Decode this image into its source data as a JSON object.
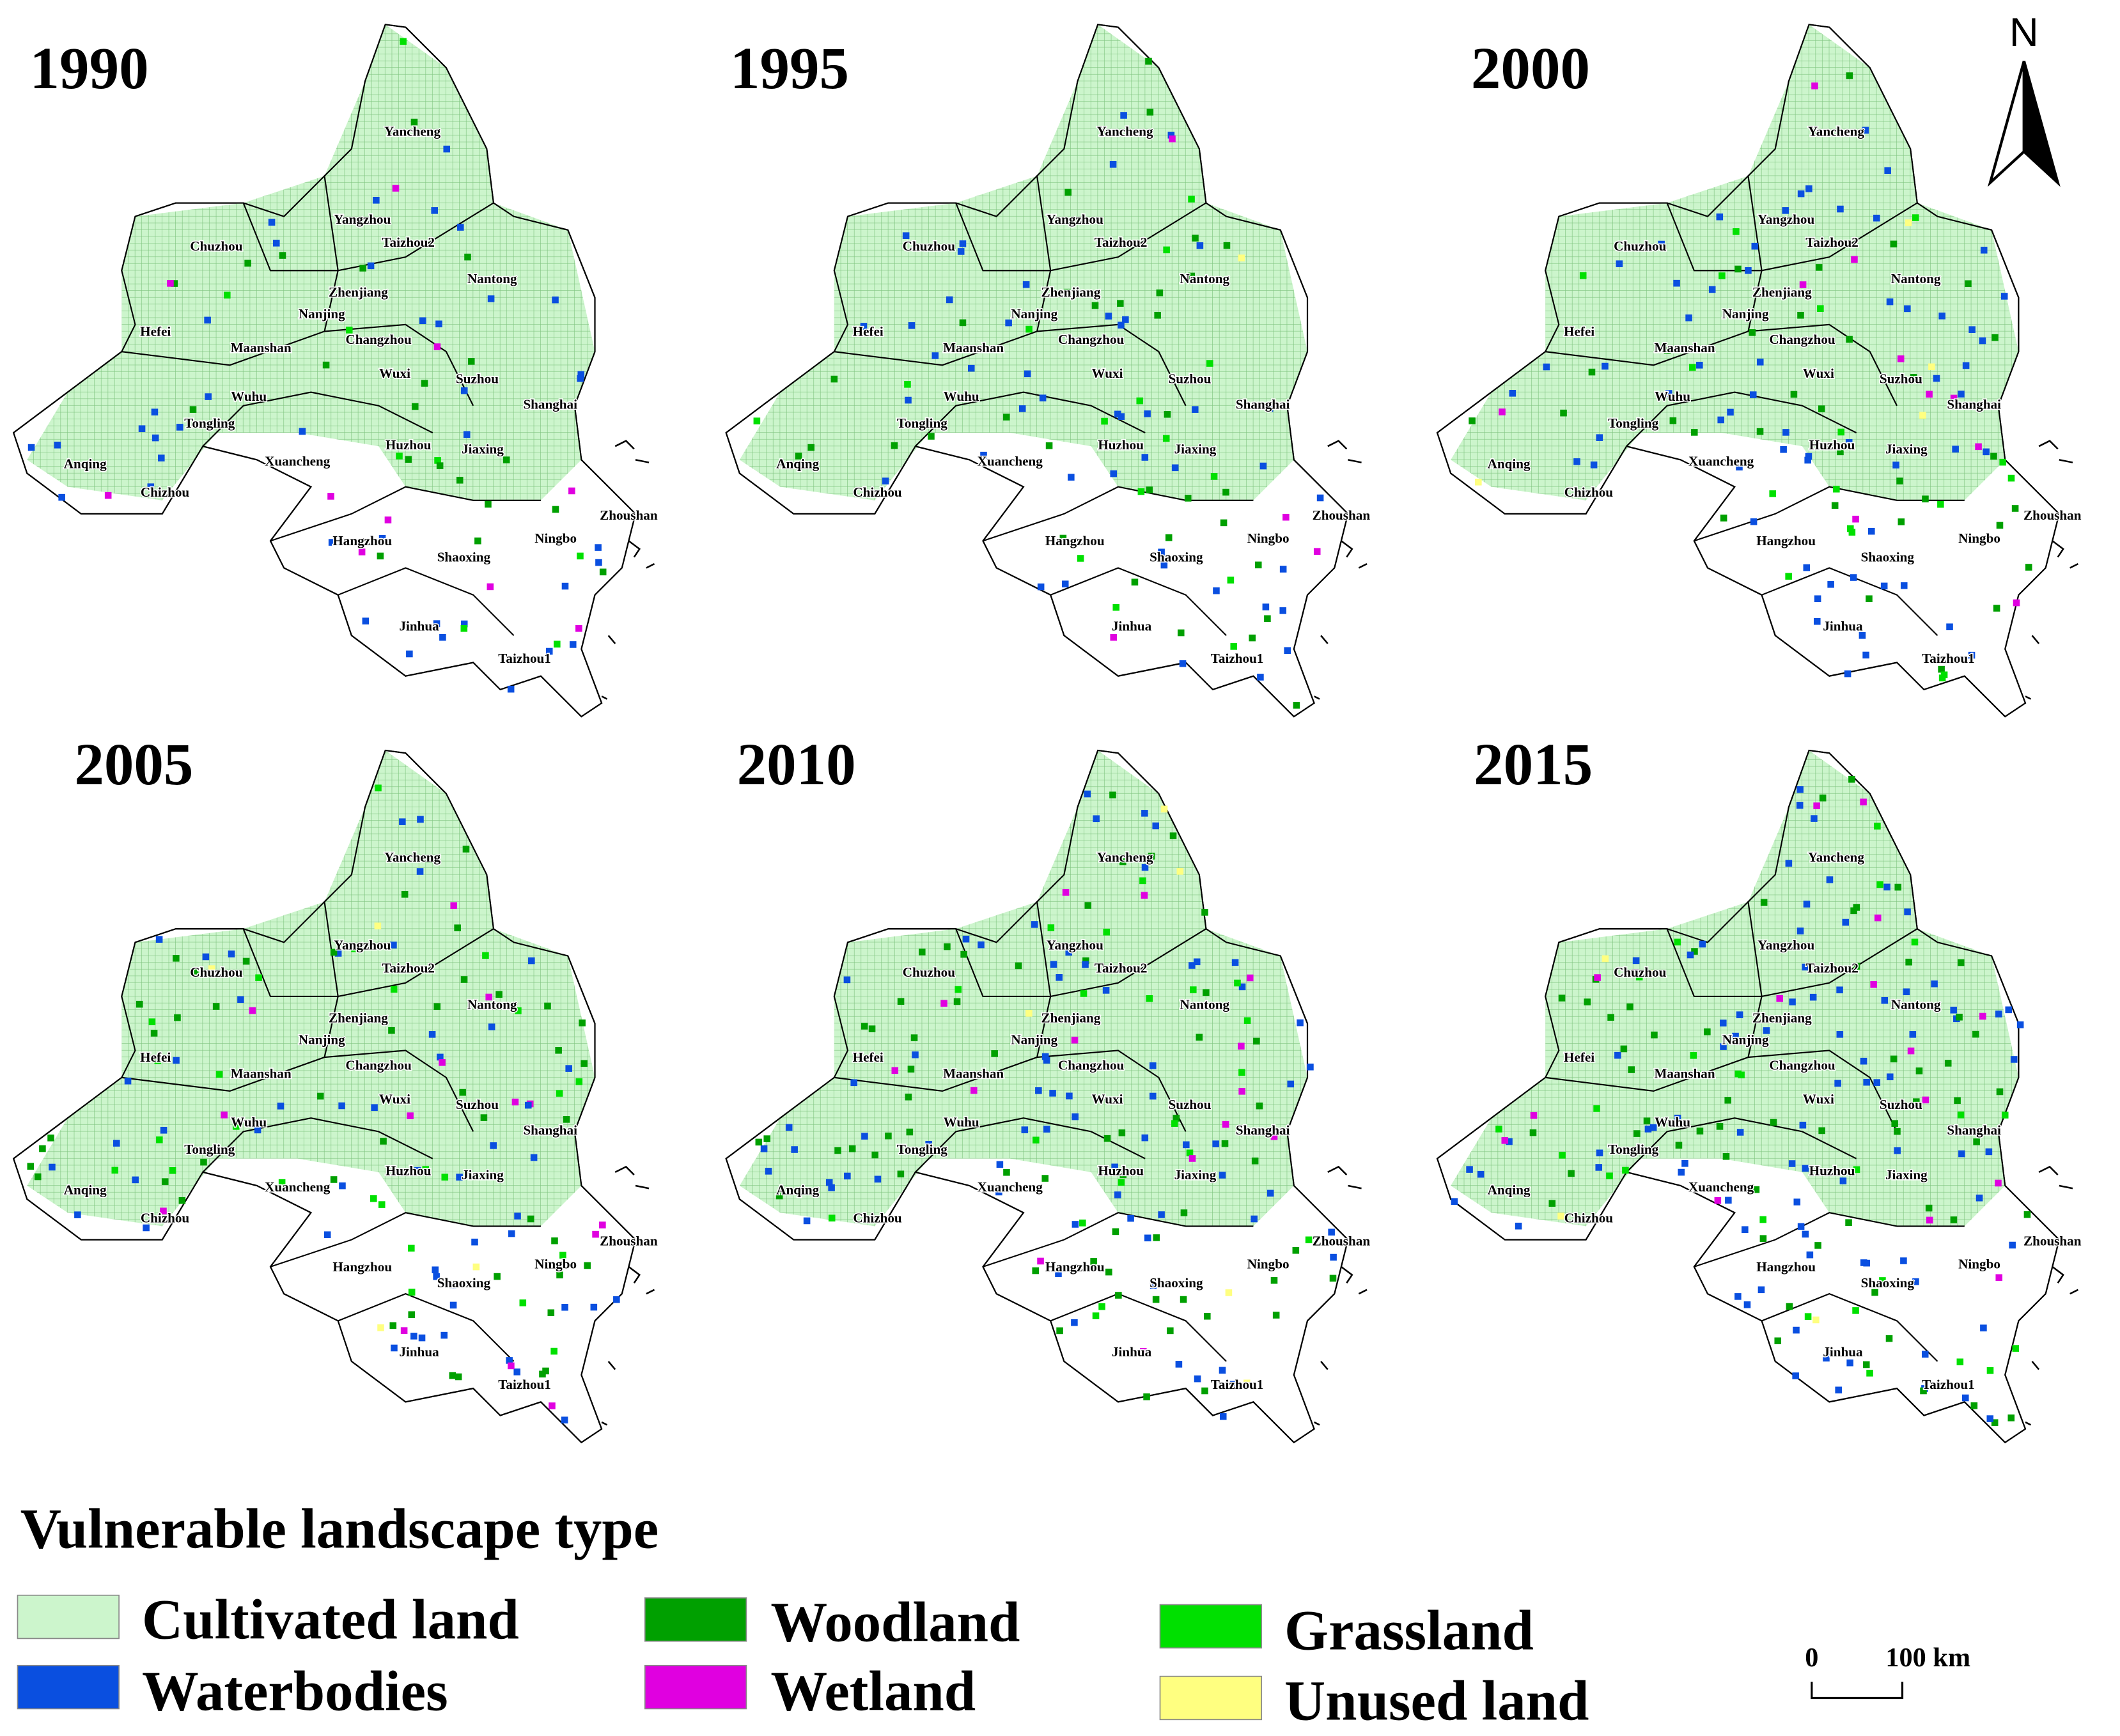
{
  "panels": [
    {
      "year": "1990"
    },
    {
      "year": "1995"
    },
    {
      "year": "2000"
    },
    {
      "year": "2005"
    },
    {
      "year": "2010"
    },
    {
      "year": "2015"
    }
  ],
  "cities": [
    "Yancheng",
    "Yangzhou",
    "Taizhou2",
    "Chuzhou",
    "Nantong",
    "Zhenjiang",
    "Nanjing",
    "Hefei",
    "Changzhou",
    "Maanshan",
    "Wuxi",
    "Suzhou",
    "Wuhu",
    "Shanghai",
    "Tongling",
    "Huzhou",
    "Jiaxing",
    "Xuancheng",
    "Anqing",
    "Chizhou",
    "Zhoushan",
    "Hangzhou",
    "Ningbo",
    "Shaoxing",
    "Jinhua",
    "Taizhou1"
  ],
  "legend": {
    "title": "Vulnerable landscape type",
    "items": [
      {
        "label": "Cultivated land",
        "color": "#ccf5cc"
      },
      {
        "label": "Waterbodies",
        "color": "#0a4fe0"
      },
      {
        "label": "Woodland",
        "color": "#00a000"
      },
      {
        "label": "Wetland",
        "color": "#e000e0"
      },
      {
        "label": "Grassland",
        "color": "#00e000"
      },
      {
        "label": "Unused land",
        "color": "#ffff80"
      }
    ]
  },
  "scale_bar": {
    "labels": [
      "0",
      "100 km"
    ]
  },
  "north_label": "N"
}
